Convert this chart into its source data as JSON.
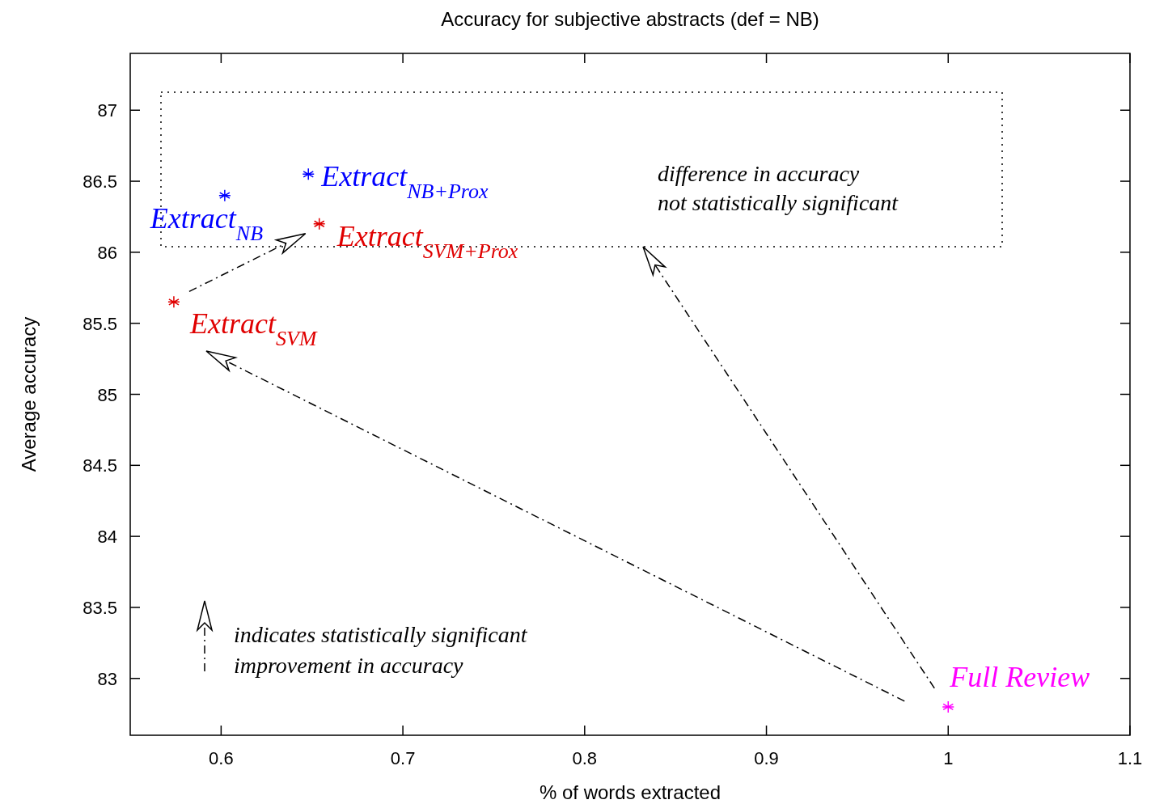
{
  "chart_data": {
    "type": "scatter",
    "title": "Accuracy for subjective abstracts (def = NB)",
    "xlabel": "% of words extracted",
    "ylabel": "Average accuracy",
    "xlim": [
      0.55,
      1.1
    ],
    "xticks": [
      0.6,
      0.7,
      0.8,
      0.9,
      1,
      1.1
    ],
    "ylim": [
      82.6,
      87.4
    ],
    "yticks": [
      83,
      83.5,
      84,
      84.5,
      85,
      85.5,
      86,
      86.5,
      87
    ],
    "marker": "cross",
    "grid": false,
    "legend": false,
    "series": [
      {
        "name": "Extract$_{NB}$",
        "color": "#0000ff",
        "x": [
          0.602
        ],
        "values": [
          86.4
        ]
      },
      {
        "name": "Extract$_{NB+Prox}$",
        "color": "#0000ff",
        "x": [
          0.648
        ],
        "values": [
          86.55
        ]
      },
      {
        "name": "Extract$_{SVM+Prox}$",
        "color": "#e00000",
        "x": [
          0.654
        ],
        "values": [
          86.2
        ]
      },
      {
        "name": "Extract$_{SVM}$",
        "color": "#e00000",
        "x": [
          0.574
        ],
        "values": [
          85.65
        ]
      },
      {
        "name": "Full Review",
        "color": "#ff00ff",
        "x": [
          1.0
        ],
        "values": [
          82.8
        ]
      }
    ],
    "annotations": [
      "difference in accuracy\nnot statistically significant",
      "indicates statistically significant\nimprovement in accuracy"
    ]
  }
}
